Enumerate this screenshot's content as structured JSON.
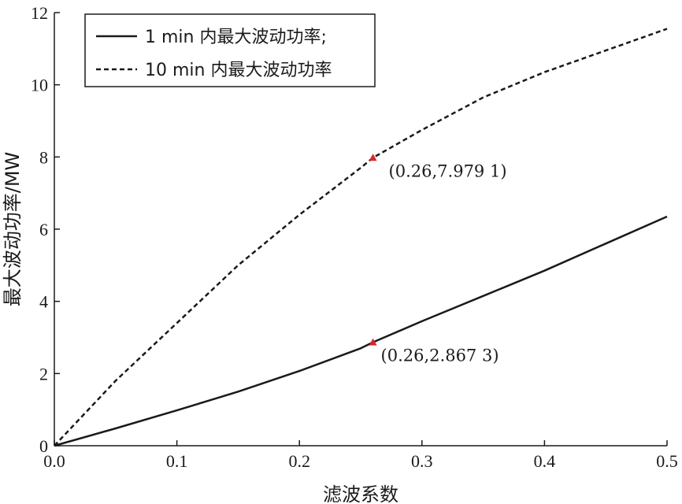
{
  "chart_data": {
    "type": "line",
    "xlabel": "滤波系数",
    "ylabel": "最大波动功率/MW",
    "xlim": [
      0.0,
      0.5
    ],
    "ylim": [
      0,
      12
    ],
    "x_ticks": [
      "0.0",
      "0.1",
      "0.2",
      "0.3",
      "0.4",
      "0.5"
    ],
    "y_ticks": [
      "0",
      "2",
      "4",
      "6",
      "8",
      "10",
      "12"
    ],
    "grid": false,
    "legend_position": "top-left",
    "series": [
      {
        "name": "1 min 内最大波动功率;",
        "style": "solid",
        "color": "#1a1a1a",
        "x": [
          0.0,
          0.05,
          0.1,
          0.15,
          0.2,
          0.25,
          0.26,
          0.3,
          0.35,
          0.4,
          0.45,
          0.5
        ],
        "y": [
          0.0,
          0.48,
          0.98,
          1.5,
          2.07,
          2.7,
          2.8673,
          3.45,
          4.15,
          4.85,
          5.6,
          6.35
        ]
      },
      {
        "name": "10 min 内最大波动功率",
        "style": "dashed",
        "color": "#1a1a1a",
        "x": [
          0.0,
          0.05,
          0.1,
          0.15,
          0.2,
          0.25,
          0.26,
          0.3,
          0.35,
          0.4,
          0.45,
          0.5
        ],
        "y": [
          0.0,
          1.8,
          3.4,
          5.0,
          6.4,
          7.7,
          7.9791,
          8.75,
          9.65,
          10.35,
          10.95,
          11.55
        ]
      }
    ],
    "annotations": [
      {
        "x": 0.26,
        "y": 7.9791,
        "label": "(0.26,7.979 1)",
        "marker_color": "#d62728"
      },
      {
        "x": 0.26,
        "y": 2.8673,
        "label": "(0.26,2.867 3)",
        "marker_color": "#d62728"
      }
    ]
  }
}
